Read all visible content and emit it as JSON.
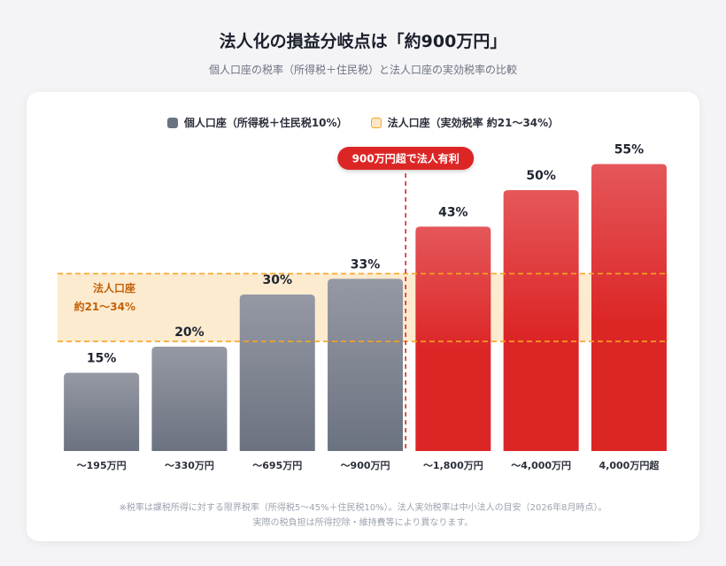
{
  "header": {
    "title": "法人化の損益分岐点は「約900万円」",
    "subtitle": "個人口座の税率（所得税＋住民税）と法人口座の実効税率の比較"
  },
  "legend": {
    "individual": "個人口座（所得税＋住民税10%）",
    "corporate": "法人口座（実効税率 約21〜34%）"
  },
  "band_label": {
    "line1": "法人口座",
    "line2": "約21〜34%"
  },
  "threshold_label": "900万円超で法人有利",
  "notes": {
    "line1": "※税率は課税所得に対する限界税率（所得税5〜45%＋住民税10%）。法人実効税率は中小法人の目安（2026年8月時点）。",
    "line2": "実際の税負担は所得控除・維持費等により異なります。"
  },
  "colors": {
    "individual_top": "#9699a4",
    "individual_bottom": "#6b7280",
    "corporate_top": "#e5575a",
    "corporate_bottom": "#dc2626",
    "band_fill": "#fdebd0",
    "band_line": "#f5a623",
    "band_text": "#c2620a",
    "threshold": "#dc2626"
  },
  "chart_data": {
    "type": "bar",
    "categories": [
      "〜195万円",
      "〜330万円",
      "〜695万円",
      "〜900万円",
      "〜1,800万円",
      "〜4,000万円",
      "4,000万円超"
    ],
    "values": [
      15,
      20,
      30,
      33,
      43,
      50,
      55
    ],
    "value_labels": [
      "15%",
      "20%",
      "30%",
      "33%",
      "43%",
      "50%",
      "55%"
    ],
    "groups": [
      "individual",
      "individual",
      "individual",
      "individual",
      "corporate_advantage",
      "corporate_advantage",
      "corporate_advantage"
    ],
    "ylim": [
      0,
      60
    ],
    "band": [
      21,
      34
    ],
    "threshold_after_category": "〜900万円",
    "grid": false
  }
}
